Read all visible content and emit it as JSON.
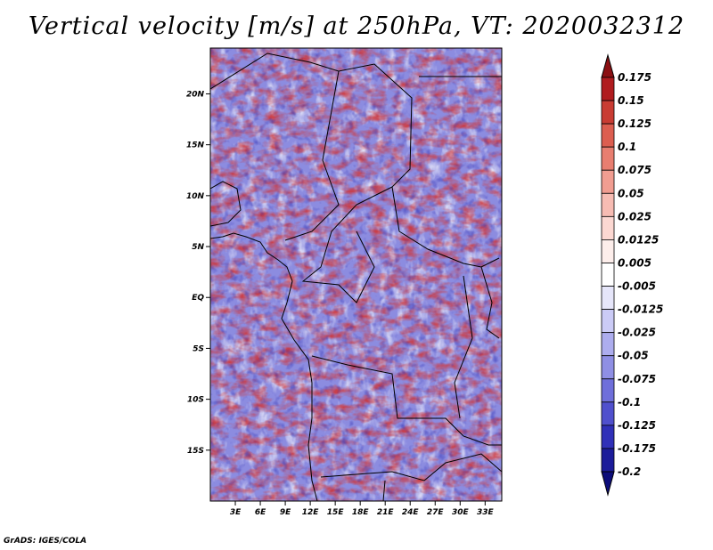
{
  "title": "Vertical velocity [m/s] at 250hPa, VT: 2020032312",
  "credit": "GrADS: IGES/COLA",
  "chart_data": {
    "type": "heatmap",
    "title": "Vertical velocity [m/s] at 250hPa, VT: 2020032312",
    "variable": "Vertical velocity",
    "units": "m/s",
    "level": "250hPa",
    "valid_time": "2020032312",
    "x_ticks": [
      {
        "value": 3,
        "label": "3E"
      },
      {
        "value": 6,
        "label": "6E"
      },
      {
        "value": 9,
        "label": "9E"
      },
      {
        "value": 12,
        "label": "12E"
      },
      {
        "value": 15,
        "label": "15E"
      },
      {
        "value": 18,
        "label": "18E"
      },
      {
        "value": 21,
        "label": "21E"
      },
      {
        "value": 24,
        "label": "24E"
      },
      {
        "value": 27,
        "label": "27E"
      },
      {
        "value": 30,
        "label": "30E"
      },
      {
        "value": 33,
        "label": "33E"
      }
    ],
    "y_ticks": [
      {
        "value": 20,
        "label": "20N"
      },
      {
        "value": 15,
        "label": "15N"
      },
      {
        "value": 10,
        "label": "10N"
      },
      {
        "value": 5,
        "label": "5N"
      },
      {
        "value": 0,
        "label": "EQ"
      },
      {
        "value": -5,
        "label": "5S"
      },
      {
        "value": -10,
        "label": "10S"
      },
      {
        "value": -15,
        "label": "15S"
      }
    ],
    "xlim": [
      0,
      35
    ],
    "ylim": [
      -20,
      24.5
    ],
    "colorbar": {
      "levels": [
        "0.175",
        "0.15",
        "0.125",
        "0.1",
        "0.075",
        "0.05",
        "0.025",
        "0.0125",
        "0.005",
        "-0.005",
        "-0.0125",
        "-0.025",
        "-0.05",
        "-0.075",
        "-0.1",
        "-0.125",
        "-0.175",
        "-0.2"
      ],
      "colors": [
        "#8b0f12",
        "#b01c1f",
        "#c93c33",
        "#dc5e50",
        "#e87e70",
        "#f19d91",
        "#f7bcb3",
        "#fcd8d2",
        "#fdeeeb",
        "#ffffff",
        "#e6e6fa",
        "#cbcbf6",
        "#adadee",
        "#8f8fe4",
        "#6f6fda",
        "#5050cd",
        "#3030b8",
        "#1c1c9a",
        "#0d0d7a"
      ],
      "extend": "both"
    }
  }
}
